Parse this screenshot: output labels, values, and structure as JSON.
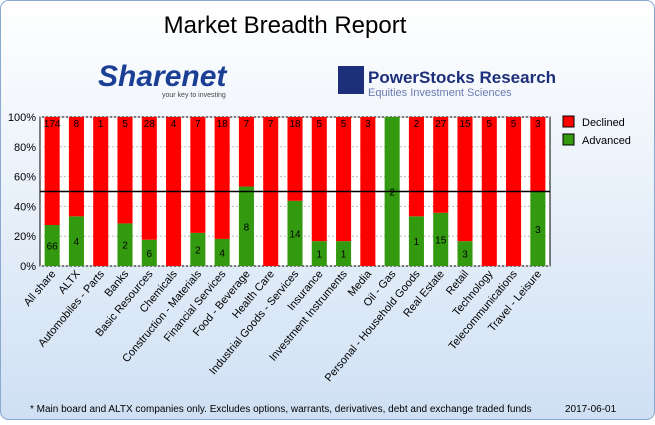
{
  "chart_data": {
    "type": "bar",
    "stacking": "percent",
    "title": "Market Breadth Report",
    "logos": [
      {
        "name": "Sharenet",
        "tagline": "your key to investing"
      },
      {
        "name": "PowerStocks Research",
        "tagline": "Equities Investment Sciences"
      }
    ],
    "footnote": "* Main board and ALTX companies only. Excludes options, warrants, derivatives, debt and exchange traded funds",
    "date": "2017-06-01",
    "categories": [
      "All share",
      "ALTX",
      "Automobiles - Parts",
      "Banks",
      "Basic Resources",
      "Chemicals",
      "Construction - Materials",
      "Financial Services",
      "Food - Beverage",
      "Health Care",
      "Industrial Goods - Services",
      "Insurance",
      "Investment Instruments",
      "Media",
      "Oil - Gas",
      "Personal - Household Goods",
      "Real Estate",
      "Retail",
      "Technology",
      "Telecommunications",
      "Travel - Leisure"
    ],
    "series": [
      {
        "name": "Advanced",
        "color": "#339a10",
        "values": [
          66,
          4,
          0,
          2,
          6,
          0,
          2,
          4,
          8,
          0,
          14,
          1,
          1,
          0,
          2,
          1,
          15,
          3,
          0,
          0,
          3
        ]
      },
      {
        "name": "Declined",
        "color": "#ff0000",
        "values": [
          174,
          8,
          1,
          5,
          28,
          4,
          7,
          18,
          7,
          7,
          18,
          5,
          5,
          3,
          0,
          2,
          27,
          15,
          5,
          5,
          3
        ]
      }
    ],
    "ylim": [
      0,
      100
    ],
    "yticks": [
      {
        "value": 0,
        "label": "0%"
      },
      {
        "value": 20,
        "label": "20%"
      },
      {
        "value": 40,
        "label": "40%"
      },
      {
        "value": 60,
        "label": "60%"
      },
      {
        "value": 80,
        "label": "80%"
      },
      {
        "value": 100,
        "label": "100%"
      }
    ],
    "reference_line": 50,
    "grid": true,
    "legend": "right"
  }
}
